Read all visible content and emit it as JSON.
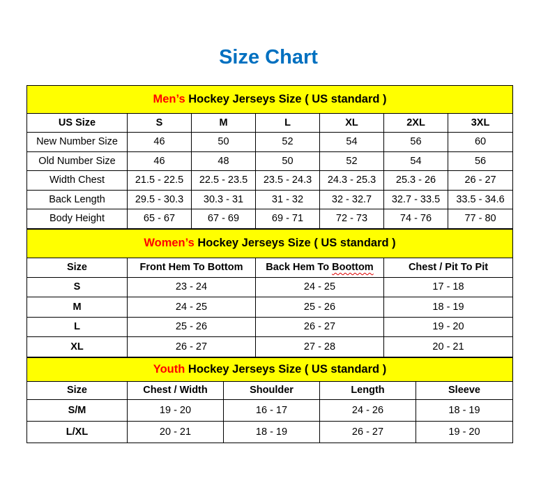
{
  "title": "Size Chart",
  "colors": {
    "title": "#0070C0",
    "header_bg": "#FFFF00",
    "highlight": "#FF0000"
  },
  "men": {
    "header_highlight": "Men’s",
    "header_rest": " Hockey Jerseys Size ( US standard )",
    "columns": [
      "US Size",
      "S",
      "M",
      "L",
      "XL",
      "2XL",
      "3XL"
    ],
    "rows": [
      [
        "New Number Size",
        "46",
        "50",
        "52",
        "54",
        "56",
        "60"
      ],
      [
        "Old Number Size",
        "46",
        "48",
        "50",
        "52",
        "54",
        "56"
      ],
      [
        "Width Chest",
        "21.5 - 22.5",
        "22.5 - 23.5",
        "23.5 - 24.3",
        "24.3 - 25.3",
        "25.3 - 26",
        "26 - 27"
      ],
      [
        "Back Length",
        "29.5 - 30.3",
        "30.3 - 31",
        "31 - 32",
        "32 - 32.7",
        "32.7 - 33.5",
        "33.5 - 34.6"
      ],
      [
        "Body Height",
        "65 - 67",
        "67 - 69",
        "69 - 71",
        "72 - 73",
        "74 - 76",
        "77 - 80"
      ]
    ]
  },
  "women": {
    "header_highlight": "Women’s",
    "header_rest": " Hockey Jerseys Size ( US standard )",
    "columns": [
      "Size",
      "Front Hem To Bottom",
      "Back Hem To Boottom",
      "Chest / Pit To Pit"
    ],
    "rows": [
      [
        "S",
        "23 - 24",
        "24 - 25",
        "17 - 18"
      ],
      [
        "M",
        "24 - 25",
        "25 - 26",
        "18 - 19"
      ],
      [
        "L",
        "25 - 26",
        "26 - 27",
        "19 - 20"
      ],
      [
        "XL",
        "26 - 27",
        "27 - 28",
        "20 - 21"
      ]
    ]
  },
  "youth": {
    "header_highlight": "Youth",
    "header_rest": " Hockey Jerseys Size ( US standard )",
    "columns": [
      "Size",
      "Chest / Width",
      "Shoulder",
      "Length",
      "Sleeve"
    ],
    "rows": [
      [
        "S/M",
        "19 - 20",
        "16 - 17",
        "24 - 26",
        "18 - 19"
      ],
      [
        "L/XL",
        "20 - 21",
        "18 - 19",
        "26 - 27",
        "19 - 20"
      ]
    ]
  }
}
